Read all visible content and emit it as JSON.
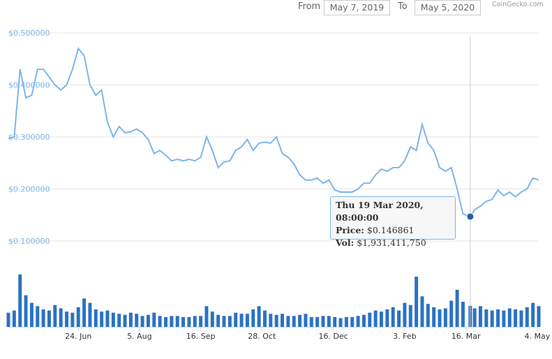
{
  "chart_data": {
    "type": "line",
    "range": {
      "from_label": "From",
      "from": "May 7, 2019",
      "to_label": "To",
      "to": "May 5, 2020"
    },
    "credit": "CoinGecko.com",
    "x": [
      "2019-05-07",
      "2019-05-11",
      "2019-05-15",
      "2019-05-19",
      "2019-05-23",
      "2019-05-27",
      "2019-05-31",
      "2019-06-04",
      "2019-06-08",
      "2019-06-12",
      "2019-06-16",
      "2019-06-20",
      "2019-06-24",
      "2019-06-28",
      "2019-07-02",
      "2019-07-06",
      "2019-07-10",
      "2019-07-14",
      "2019-07-18",
      "2019-07-22",
      "2019-07-26",
      "2019-07-30",
      "2019-08-03",
      "2019-08-07",
      "2019-08-11",
      "2019-08-15",
      "2019-08-19",
      "2019-08-23",
      "2019-08-27",
      "2019-08-31",
      "2019-09-04",
      "2019-09-08",
      "2019-09-12",
      "2019-09-16",
      "2019-09-20",
      "2019-09-24",
      "2019-09-28",
      "2019-10-02",
      "2019-10-06",
      "2019-10-10",
      "2019-10-14",
      "2019-10-18",
      "2019-10-22",
      "2019-10-26",
      "2019-10-30",
      "2019-11-03",
      "2019-11-07",
      "2019-11-11",
      "2019-11-15",
      "2019-11-19",
      "2019-11-23",
      "2019-11-27",
      "2019-12-01",
      "2019-12-05",
      "2019-12-09",
      "2019-12-13",
      "2019-12-17",
      "2019-12-21",
      "2019-12-25",
      "2019-12-29",
      "2020-01-02",
      "2020-01-06",
      "2020-01-10",
      "2020-01-14",
      "2020-01-18",
      "2020-01-22",
      "2020-01-26",
      "2020-01-30",
      "2020-02-03",
      "2020-02-07",
      "2020-02-11",
      "2020-02-15",
      "2020-02-19",
      "2020-02-23",
      "2020-02-27",
      "2020-03-02",
      "2020-03-06",
      "2020-03-10",
      "2020-03-14",
      "2020-03-19",
      "2020-03-22",
      "2020-03-26",
      "2020-03-30",
      "2020-04-03",
      "2020-04-07",
      "2020-04-11",
      "2020-04-15",
      "2020-04-19",
      "2020-04-23",
      "2020-04-27",
      "2020-05-01",
      "2020-05-05"
    ],
    "xlim": [
      "2019-05-07",
      "2020-05-05"
    ],
    "xticks": [
      {
        "value": "2019-06-24",
        "label": "24. Jun"
      },
      {
        "value": "2019-08-05",
        "label": "5. Aug"
      },
      {
        "value": "2019-09-16",
        "label": "16. Sep"
      },
      {
        "value": "2019-10-28",
        "label": "28. Oct"
      },
      {
        "value": "2019-12-16",
        "label": "16. Dec"
      },
      {
        "value": "2020-02-03",
        "label": "3. Feb"
      },
      {
        "value": "2020-03-16",
        "label": "16. Mar"
      },
      {
        "value": "2020-05-04",
        "label": "4. May"
      }
    ],
    "ylim": [
      0.1,
      0.5
    ],
    "yticks": [
      {
        "value": 0.1,
        "label": "$0.100000"
      },
      {
        "value": 0.2,
        "label": "$0.200000"
      },
      {
        "value": 0.3,
        "label": "$0.300000"
      },
      {
        "value": 0.4,
        "label": "$0.400000"
      },
      {
        "value": 0.5,
        "label": "$0.500000"
      }
    ],
    "grid": true,
    "series": [
      {
        "color": "#7cb5ec",
        "values": [
          0.297,
          0.3,
          0.43,
          0.375,
          0.38,
          0.43,
          0.43,
          0.415,
          0.4,
          0.39,
          0.4,
          0.43,
          0.47,
          0.456,
          0.4,
          0.38,
          0.39,
          0.328,
          0.3,
          0.32,
          0.308,
          0.31,
          0.315,
          0.308,
          0.295,
          0.268,
          0.274,
          0.265,
          0.254,
          0.257,
          0.254,
          0.257,
          0.254,
          0.261,
          0.3,
          0.274,
          0.241,
          0.252,
          0.254,
          0.274,
          0.281,
          0.295,
          0.274,
          0.288,
          0.29,
          0.288,
          0.3,
          0.268,
          0.261,
          0.248,
          0.227,
          0.217,
          0.217,
          0.221,
          0.211,
          0.217,
          0.198,
          0.194,
          0.194,
          0.194,
          0.2,
          0.211,
          0.211,
          0.227,
          0.238,
          0.234,
          0.241,
          0.241,
          0.254,
          0.281,
          0.274,
          0.324,
          0.288,
          0.274,
          0.241,
          0.234,
          0.241,
          0.2,
          0.152,
          0.146861,
          0.16,
          0.167,
          0.176,
          0.18,
          0.198,
          0.187,
          0.194,
          0.185,
          0.194,
          0.2,
          0.221,
          0.217
        ]
      },
      {
        "type": "bar",
        "color": "#2b72c4",
        "values": [
          1300000000,
          1500000000,
          4800000000,
          2900000000,
          2200000000,
          1900000000,
          1600000000,
          1500000000,
          2000000000,
          1700000000,
          1400000000,
          1300000000,
          1800000000,
          2600000000,
          2200000000,
          1600000000,
          1400000000,
          1500000000,
          1300000000,
          1200000000,
          1100000000,
          1300000000,
          1200000000,
          1000000000,
          1100000000,
          1300000000,
          1000000000,
          900000000,
          1000000000,
          1000000000,
          900000000,
          900000000,
          1000000000,
          1000000000,
          1900000000,
          1400000000,
          1100000000,
          1000000000,
          1000000000,
          1300000000,
          1200000000,
          1200000000,
          1600000000,
          1900000000,
          1500000000,
          1200000000,
          1100000000,
          1200000000,
          1000000000,
          1000000000,
          1100000000,
          1200000000,
          900000000,
          900000000,
          1000000000,
          1000000000,
          900000000,
          800000000,
          900000000,
          900000000,
          1000000000,
          1100000000,
          1300000000,
          1500000000,
          1400000000,
          1600000000,
          1800000000,
          1500000000,
          2200000000,
          2000000000,
          4600000000,
          2800000000,
          2100000000,
          1800000000,
          1600000000,
          1700000000,
          2400000000,
          3400000000,
          2300000000,
          1931411750,
          1700000000,
          1900000000,
          1600000000,
          1500000000,
          1600000000,
          1500000000,
          1700000000,
          1600000000,
          1500000000,
          1800000000,
          2200000000,
          1900000000
        ]
      }
    ],
    "tooltip": {
      "date": "Thu 19 Mar 2020, 08:00:00",
      "price_label": "Price:",
      "price": "$0.146861",
      "vol_label": "Vol:",
      "vol": "$1,931,411,750"
    }
  }
}
